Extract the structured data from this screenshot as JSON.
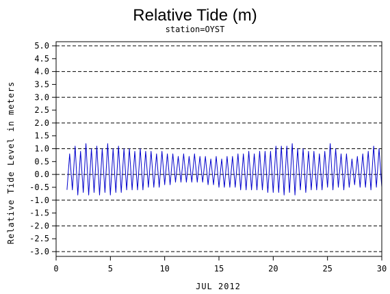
{
  "chart_data": {
    "type": "line",
    "title": "Relative Tide (m)",
    "subtitle": "station=OYST",
    "xlabel": "JUL 2012",
    "ylabel": "Relative Tide Level in meters",
    "xlim": [
      0,
      30
    ],
    "ylim": [
      -3.0,
      5.0
    ],
    "x_ticks": [
      "0",
      "5",
      "10",
      "15",
      "20",
      "25",
      "30"
    ],
    "y_ticks": [
      "-3.0",
      "-2.5",
      "-2.0",
      "-1.5",
      "-1.0",
      "-0.5",
      "0.0",
      "0.5",
      "1.0",
      "1.5",
      "2.0",
      "2.5",
      "3.0",
      "3.5",
      "4.0",
      "4.5",
      "5.0"
    ],
    "gridlines_y": [
      -3,
      -2,
      -1,
      0,
      1,
      2,
      3,
      4,
      5
    ],
    "grid": "dashed horizontal at whole meters",
    "series": [
      {
        "color": "#0000cc",
        "x": [
          1.0,
          1.25,
          1.5,
          1.75,
          2.0,
          2.25,
          2.5,
          2.75,
          3.0,
          3.25,
          3.5,
          3.75,
          4.0,
          4.25,
          4.5,
          4.75,
          5.0,
          5.25,
          5.5,
          5.75,
          6.0,
          6.25,
          6.5,
          6.75,
          7.0,
          7.25,
          7.5,
          7.75,
          8.0,
          8.25,
          8.5,
          8.75,
          9.0,
          9.25,
          9.5,
          9.75,
          10.0,
          10.25,
          10.5,
          10.75,
          11.0,
          11.25,
          11.5,
          11.75,
          12.0,
          12.25,
          12.5,
          12.75,
          13.0,
          13.25,
          13.5,
          13.75,
          14.0,
          14.25,
          14.5,
          14.75,
          15.0,
          15.25,
          15.5,
          15.75,
          16.0,
          16.25,
          16.5,
          16.75,
          17.0,
          17.25,
          17.5,
          17.75,
          18.0,
          18.25,
          18.5,
          18.75,
          19.0,
          19.25,
          19.5,
          19.75,
          20.0,
          20.25,
          20.5,
          20.75,
          21.0,
          21.25,
          21.5,
          21.75,
          22.0,
          22.25,
          22.5,
          22.75,
          23.0,
          23.25,
          23.5,
          23.75,
          24.0,
          24.25,
          24.5,
          24.75,
          25.0,
          25.25,
          25.5,
          25.75,
          26.0,
          26.25,
          26.5,
          26.75,
          27.0,
          27.25,
          27.5,
          27.75,
          28.0,
          28.25,
          28.5,
          28.75,
          29.0,
          29.25,
          29.5,
          29.75,
          30.0
        ],
        "y": [
          -0.6,
          0.8,
          -0.6,
          1.1,
          -0.8,
          0.9,
          -0.7,
          1.2,
          -0.8,
          1.0,
          -0.7,
          1.1,
          -0.8,
          1.0,
          -0.7,
          1.2,
          -0.8,
          1.0,
          -0.7,
          1.1,
          -0.7,
          1.0,
          -0.6,
          1.0,
          -0.6,
          0.9,
          -0.6,
          1.0,
          -0.6,
          0.9,
          -0.5,
          0.9,
          -0.5,
          0.8,
          -0.5,
          0.9,
          -0.4,
          0.8,
          -0.4,
          0.8,
          -0.3,
          0.7,
          -0.3,
          0.8,
          -0.3,
          0.7,
          -0.3,
          0.8,
          -0.3,
          0.7,
          -0.3,
          0.7,
          -0.4,
          0.6,
          -0.4,
          0.7,
          -0.5,
          0.6,
          -0.5,
          0.7,
          -0.5,
          0.7,
          -0.5,
          0.8,
          -0.6,
          0.8,
          -0.6,
          0.9,
          -0.6,
          0.8,
          -0.6,
          0.9,
          -0.6,
          0.9,
          -0.7,
          0.9,
          -0.7,
          1.1,
          -0.7,
          1.1,
          -0.8,
          1.1,
          -0.7,
          1.2,
          -0.8,
          1.0,
          -0.6,
          1.0,
          -0.7,
          0.9,
          -0.6,
          0.9,
          -0.6,
          0.8,
          -0.6,
          0.9,
          -0.5,
          1.2,
          -0.6,
          1.0,
          -0.5,
          0.8,
          -0.6,
          0.8,
          -0.5,
          0.6,
          -0.4,
          0.7,
          -0.5,
          0.8,
          -0.5,
          0.9,
          -0.6,
          1.1,
          -0.5,
          1.0,
          -0.5
        ]
      }
    ]
  }
}
